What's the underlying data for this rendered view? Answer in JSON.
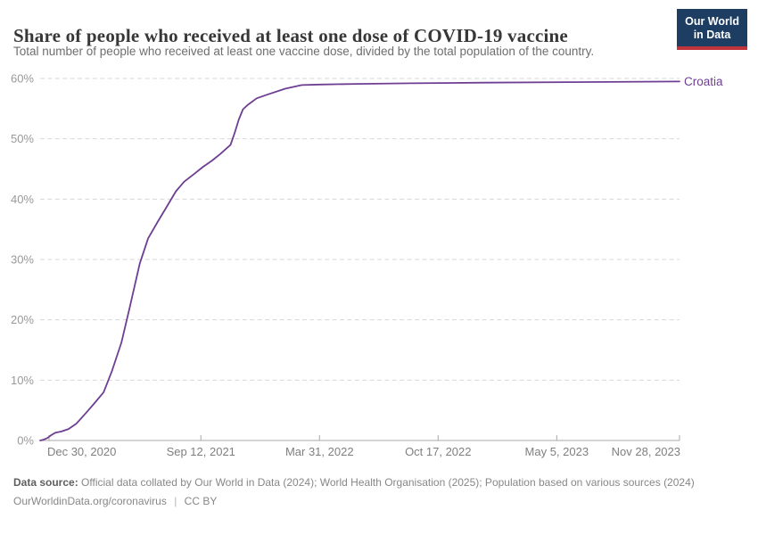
{
  "header": {
    "title": "Share of people who received at least one dose of COVID-19 vaccine",
    "subtitle": "Total number of people who received at least one vaccine dose, divided by the total population of the country."
  },
  "logo": {
    "line1": "Our World",
    "line2": "in Data"
  },
  "chart_data": {
    "type": "line",
    "title": "Share of people who received at least one dose of COVID-19 vaccine",
    "subtitle": "Total number of people who received at least one vaccine dose, divided by the total population of the country.",
    "grid": "horizontal-dashed",
    "legend_position": "end-of-line-label",
    "x_domain": [
      "2020-12-15",
      "2023-11-28"
    ],
    "ylim": [
      0,
      60
    ],
    "yticks": [
      {
        "value": 0,
        "label": "0%"
      },
      {
        "value": 10,
        "label": "10%"
      },
      {
        "value": 20,
        "label": "20%"
      },
      {
        "value": 30,
        "label": "30%"
      },
      {
        "value": 40,
        "label": "40%"
      },
      {
        "value": 50,
        "label": "50%"
      },
      {
        "value": 60,
        "label": "60%"
      }
    ],
    "xticks": [
      {
        "date": "2020-12-30",
        "label": "Dec 30, 2020"
      },
      {
        "date": "2021-09-12",
        "label": "Sep 12, 2021"
      },
      {
        "date": "2022-03-31",
        "label": "Mar 31, 2022"
      },
      {
        "date": "2022-10-17",
        "label": "Oct 17, 2022"
      },
      {
        "date": "2023-05-05",
        "label": "May 5, 2023"
      },
      {
        "date": "2023-11-28",
        "label": "Nov 28, 2023"
      }
    ],
    "series": [
      {
        "name": "Croatia",
        "color": "#6d3e91",
        "points": [
          [
            "2020-12-15",
            0.0
          ],
          [
            "2020-12-20",
            0.1
          ],
          [
            "2020-12-27",
            0.4
          ],
          [
            "2021-01-03",
            0.9
          ],
          [
            "2021-01-10",
            1.3
          ],
          [
            "2021-01-20",
            1.5
          ],
          [
            "2021-02-01",
            1.9
          ],
          [
            "2021-02-14",
            2.8
          ],
          [
            "2021-03-01",
            4.4
          ],
          [
            "2021-03-15",
            6.0
          ],
          [
            "2021-04-01",
            8.0
          ],
          [
            "2021-04-15",
            11.5
          ],
          [
            "2021-05-01",
            16.2
          ],
          [
            "2021-05-15",
            22.0
          ],
          [
            "2021-06-01",
            29.3
          ],
          [
            "2021-06-15",
            33.5
          ],
          [
            "2021-07-01",
            36.2
          ],
          [
            "2021-07-15",
            38.5
          ],
          [
            "2021-08-01",
            41.3
          ],
          [
            "2021-08-15",
            42.9
          ],
          [
            "2021-09-01",
            44.2
          ],
          [
            "2021-09-15",
            45.3
          ],
          [
            "2021-10-01",
            46.4
          ],
          [
            "2021-10-15",
            47.5
          ],
          [
            "2021-11-01",
            49.0
          ],
          [
            "2021-11-08",
            51.0
          ],
          [
            "2021-11-15",
            53.2
          ],
          [
            "2021-11-22",
            54.9
          ],
          [
            "2021-12-01",
            55.7
          ],
          [
            "2021-12-15",
            56.7
          ],
          [
            "2022-01-01",
            57.3
          ],
          [
            "2022-02-01",
            58.3
          ],
          [
            "2022-03-01",
            58.9
          ],
          [
            "2022-04-01",
            59.0
          ],
          [
            "2022-06-01",
            59.1
          ],
          [
            "2022-09-01",
            59.2
          ],
          [
            "2023-01-01",
            59.3
          ],
          [
            "2023-06-01",
            59.4
          ],
          [
            "2023-11-28",
            59.5
          ]
        ]
      }
    ],
    "colors": {
      "line": "#6d3e91",
      "gridline": "#d7d7d7",
      "axis": "#a8a8a8",
      "y_labels": "#999999",
      "x_labels": "#7f7f7f"
    }
  },
  "footer": {
    "source_label": "Data source:",
    "source_text": "Official data collated by Our World in Data (2024); World Health Organisation (2025); Population based on various sources (2024)",
    "link": "OurWorldinData.org/coronavirus",
    "separator": "|",
    "license": "CC BY"
  }
}
